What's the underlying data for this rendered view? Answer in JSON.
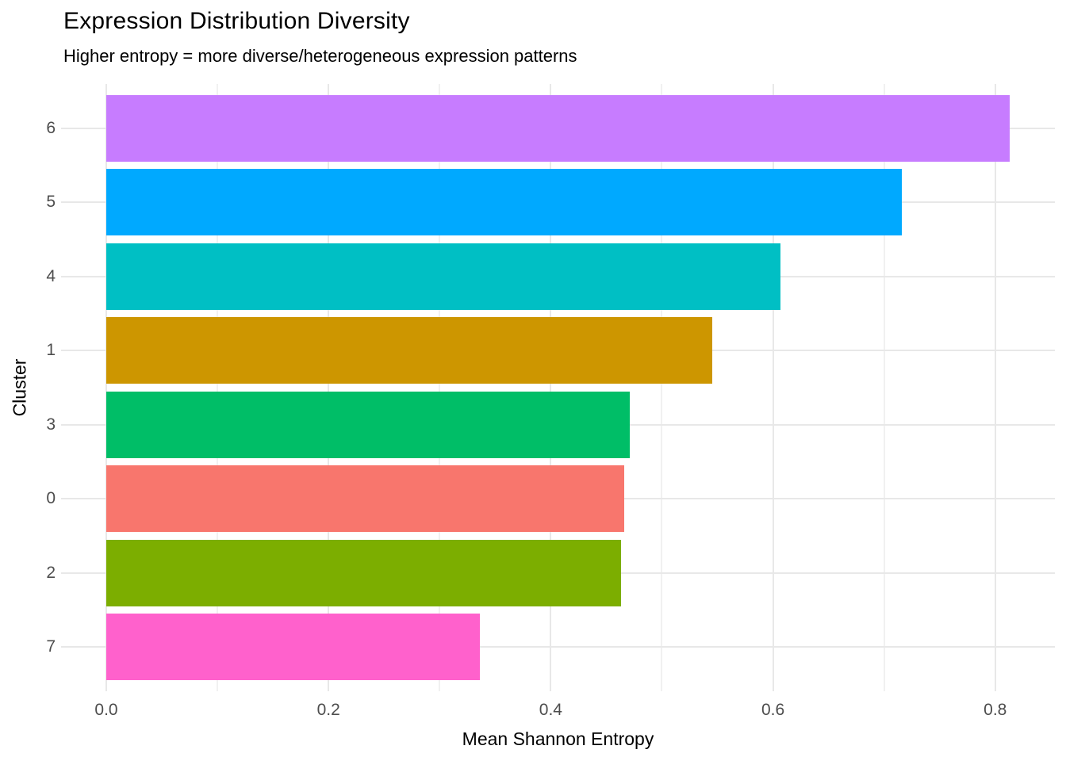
{
  "chart_data": {
    "type": "bar",
    "orientation": "horizontal",
    "title": "Expression Distribution Diversity",
    "subtitle": "Higher entropy = more diverse/heterogeneous expression patterns",
    "xlabel": "Mean Shannon Entropy",
    "ylabel": "Cluster",
    "categories": [
      "6",
      "5",
      "4",
      "1",
      "3",
      "0",
      "2",
      "7"
    ],
    "values": [
      0.813,
      0.716,
      0.607,
      0.545,
      0.471,
      0.466,
      0.463,
      0.336
    ],
    "colors": [
      "#C77CFF",
      "#00A9FF",
      "#00BFC4",
      "#CD9600",
      "#00BE67",
      "#F8766D",
      "#7CAE00",
      "#FF61CC"
    ],
    "x_ticks": [
      {
        "label": "0.0",
        "value": 0.0
      },
      {
        "label": "0.2",
        "value": 0.2
      },
      {
        "label": "0.4",
        "value": 0.4
      },
      {
        "label": "0.6",
        "value": 0.6
      },
      {
        "label": "0.8",
        "value": 0.8
      }
    ],
    "x_minor_ticks": [
      0.1,
      0.3,
      0.5,
      0.7
    ],
    "x_domain": [
      -0.0407,
      0.8537
    ],
    "xlim": [
      0,
      0.8
    ],
    "grid": true,
    "legend": false
  }
}
